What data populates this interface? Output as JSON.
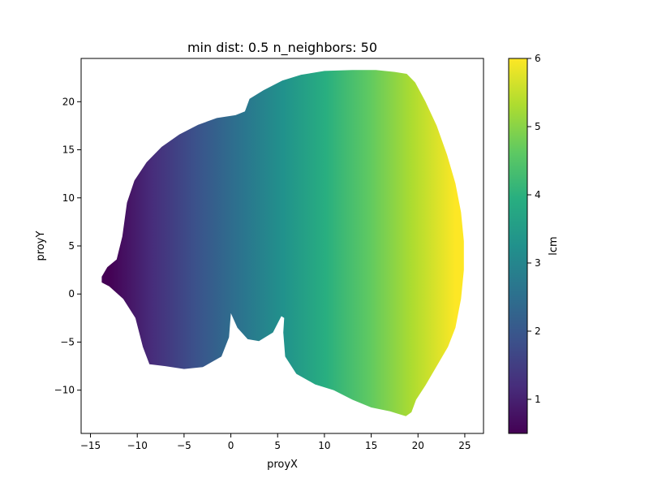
{
  "chart_data": {
    "type": "scatter",
    "title": "min dist: 0.5 n_neighbors: 50",
    "xlabel": "proyX",
    "ylabel": "proyY",
    "xlim": [
      -16,
      27
    ],
    "ylim": [
      -14.5,
      24.5
    ],
    "x_ticks": [
      -15,
      -10,
      -5,
      0,
      5,
      10,
      15,
      20,
      25
    ],
    "y_ticks": [
      -10,
      -5,
      0,
      5,
      10,
      15,
      20
    ],
    "x_tick_labels": [
      "−15",
      "−10",
      "−5",
      "0",
      "5",
      "10",
      "15",
      "20",
      "25"
    ],
    "y_tick_labels": [
      "−10",
      "−5",
      "0",
      "5",
      "10",
      "15",
      "20"
    ],
    "grid": false,
    "colormap": "viridis",
    "color_by": "lcm",
    "colorbar": {
      "label": "lcm",
      "range": [
        0.5,
        6
      ],
      "ticks": [
        1,
        2,
        3,
        4,
        5,
        6
      ],
      "tick_labels": [
        "1",
        "2",
        "3",
        "4",
        "5",
        "6"
      ]
    },
    "point_cloud_outline": [
      [
        -13.8,
        1.8
      ],
      [
        -13.2,
        2.8
      ],
      [
        -12.2,
        3.6
      ],
      [
        -11.6,
        6.0
      ],
      [
        -11.1,
        9.5
      ],
      [
        -10.3,
        11.8
      ],
      [
        -9.0,
        13.7
      ],
      [
        -7.4,
        15.3
      ],
      [
        -5.5,
        16.6
      ],
      [
        -3.5,
        17.6
      ],
      [
        -1.5,
        18.3
      ],
      [
        0.5,
        18.6
      ],
      [
        1.5,
        19.0
      ],
      [
        2.0,
        20.3
      ],
      [
        3.5,
        21.2
      ],
      [
        5.5,
        22.2
      ],
      [
        7.5,
        22.8
      ],
      [
        10.0,
        23.2
      ],
      [
        13.0,
        23.3
      ],
      [
        15.5,
        23.3
      ],
      [
        17.5,
        23.1
      ],
      [
        18.8,
        22.9
      ],
      [
        19.7,
        22.0
      ],
      [
        20.8,
        20.0
      ],
      [
        22.0,
        17.5
      ],
      [
        23.1,
        14.5
      ],
      [
        24.0,
        11.5
      ],
      [
        24.6,
        8.5
      ],
      [
        24.9,
        5.5
      ],
      [
        24.9,
        2.5
      ],
      [
        24.6,
        -0.5
      ],
      [
        24.0,
        -3.5
      ],
      [
        23.2,
        -5.5
      ],
      [
        22.0,
        -7.5
      ],
      [
        20.8,
        -9.5
      ],
      [
        19.8,
        -11.0
      ],
      [
        19.3,
        -12.3
      ],
      [
        18.7,
        -12.7
      ],
      [
        17.0,
        -12.2
      ],
      [
        15.0,
        -11.8
      ],
      [
        13.0,
        -11.0
      ],
      [
        11.0,
        -10.0
      ],
      [
        9.0,
        -9.4
      ],
      [
        7.0,
        -8.3
      ],
      [
        5.8,
        -6.5
      ],
      [
        5.6,
        -4.0
      ],
      [
        5.7,
        -2.5
      ],
      [
        5.4,
        -2.3
      ],
      [
        4.5,
        -4.0
      ],
      [
        3.0,
        -4.9
      ],
      [
        1.8,
        -4.7
      ],
      [
        0.7,
        -3.5
      ],
      [
        0.0,
        -2.0
      ],
      [
        -0.2,
        -4.5
      ],
      [
        -1.0,
        -6.5
      ],
      [
        -3.0,
        -7.6
      ],
      [
        -5.0,
        -7.8
      ],
      [
        -7.0,
        -7.5
      ],
      [
        -8.7,
        -7.3
      ],
      [
        -9.4,
        -5.5
      ],
      [
        -10.2,
        -2.5
      ],
      [
        -11.5,
        -0.5
      ],
      [
        -13.0,
        0.8
      ],
      [
        -13.8,
        1.2
      ]
    ],
    "color_gradient": {
      "along": "x",
      "x_range": [
        -13,
        24
      ],
      "value_range": [
        0.5,
        6
      ]
    }
  }
}
